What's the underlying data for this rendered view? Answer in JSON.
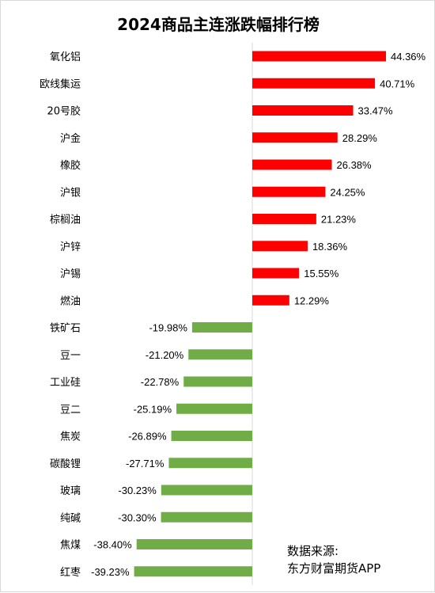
{
  "chart_data": {
    "type": "bar",
    "orientation": "horizontal",
    "title": "2024商品主连涨跌幅排行榜",
    "value_format": "percent",
    "colors": {
      "positive": "#ff0000",
      "negative": "#70ad47",
      "axis": "#d9d9d9"
    },
    "categories": [
      "氧化铝",
      "欧线集运",
      "20号胶",
      "沪金",
      "橡胶",
      "沪银",
      "棕榈油",
      "沪锌",
      "沪锡",
      "燃油",
      "铁矿石",
      "豆一",
      "工业硅",
      "豆二",
      "焦炭",
      "碳酸锂",
      "玻璃",
      "纯碱",
      "焦煤",
      "红枣"
    ],
    "values": [
      44.36,
      40.71,
      33.47,
      28.29,
      26.38,
      24.25,
      21.23,
      18.36,
      15.55,
      12.29,
      -19.98,
      -21.2,
      -22.78,
      -25.19,
      -26.89,
      -27.71,
      -30.23,
      -30.3,
      -38.4,
      -39.23
    ],
    "data_labels": [
      "44.36%",
      "40.71%",
      "33.47%",
      "28.29%",
      "26.38%",
      "24.25%",
      "21.23%",
      "18.36%",
      "15.55%",
      "12.29%",
      "-19.98%",
      "-21.20%",
      "-22.78%",
      "-25.19%",
      "-26.89%",
      "-27.71%",
      "-30.23%",
      "-30.30%",
      "-38.40%",
      "-39.23%"
    ],
    "grid": false,
    "legend": "none"
  },
  "source_note": {
    "line1": "数据来源:",
    "line2": "东方财富期货APP"
  }
}
